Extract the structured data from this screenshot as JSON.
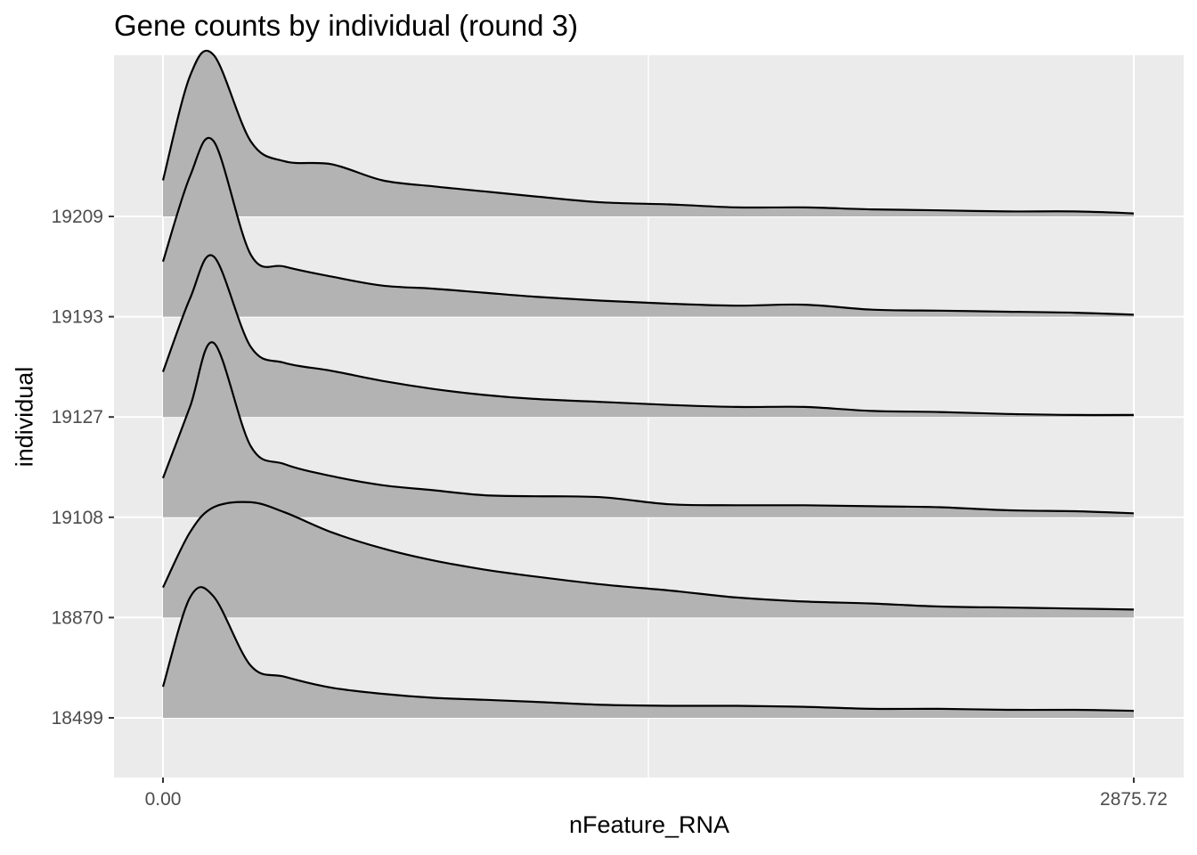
{
  "chart_data": {
    "type": "area",
    "subtype": "ridgeline",
    "title": "Gene counts by individual (round 3)",
    "xlabel": "nFeature_RNA",
    "ylabel": "individual",
    "xlim": [
      0,
      2875.72
    ],
    "x_tick_labels": [
      "0.00",
      "2875.72"
    ],
    "x_ticks": [
      0,
      2875.72
    ],
    "categories": [
      "18499",
      "18870",
      "19108",
      "19127",
      "19193",
      "19209"
    ],
    "grid": true,
    "legend": "none",
    "colors": {
      "panel": "#ebebeb",
      "grid": "#ffffff",
      "fill": "#b3b3b3",
      "line": "#000000",
      "tick_text": "#4d4d4d"
    },
    "x": [
      0,
      80,
      150,
      260,
      360,
      500,
      650,
      800,
      950,
      1100,
      1300,
      1500,
      1700,
      1900,
      2100,
      2300,
      2500,
      2700,
      2875.72
    ],
    "series": [
      {
        "name": "18499",
        "values": [
          0.31,
          1.2,
          1.21,
          0.52,
          0.41,
          0.3,
          0.24,
          0.2,
          0.18,
          0.16,
          0.13,
          0.12,
          0.12,
          0.11,
          0.09,
          0.09,
          0.08,
          0.08,
          0.07
        ]
      },
      {
        "name": "18870",
        "values": [
          0.3,
          0.85,
          1.1,
          1.15,
          1.05,
          0.85,
          0.69,
          0.57,
          0.48,
          0.41,
          0.33,
          0.27,
          0.2,
          0.16,
          0.14,
          0.11,
          0.1,
          0.09,
          0.08
        ]
      },
      {
        "name": "19108",
        "values": [
          0.39,
          1.1,
          1.74,
          0.71,
          0.53,
          0.41,
          0.32,
          0.27,
          0.22,
          0.21,
          0.2,
          0.13,
          0.12,
          0.12,
          0.11,
          0.1,
          0.07,
          0.06,
          0.04
        ]
      },
      {
        "name": "19127",
        "values": [
          0.45,
          1.18,
          1.6,
          0.7,
          0.54,
          0.46,
          0.36,
          0.28,
          0.22,
          0.18,
          0.15,
          0.12,
          0.1,
          0.1,
          0.06,
          0.05,
          0.03,
          0.02,
          0.02
        ]
      },
      {
        "name": "19193",
        "values": [
          0.55,
          1.4,
          1.75,
          0.62,
          0.5,
          0.4,
          0.31,
          0.28,
          0.24,
          0.2,
          0.16,
          0.13,
          0.11,
          0.12,
          0.07,
          0.06,
          0.05,
          0.04,
          0.02
        ]
      },
      {
        "name": "19209",
        "values": [
          0.36,
          1.4,
          1.61,
          0.75,
          0.55,
          0.52,
          0.36,
          0.3,
          0.25,
          0.2,
          0.14,
          0.12,
          0.09,
          0.09,
          0.07,
          0.06,
          0.05,
          0.05,
          0.03
        ]
      }
    ]
  }
}
